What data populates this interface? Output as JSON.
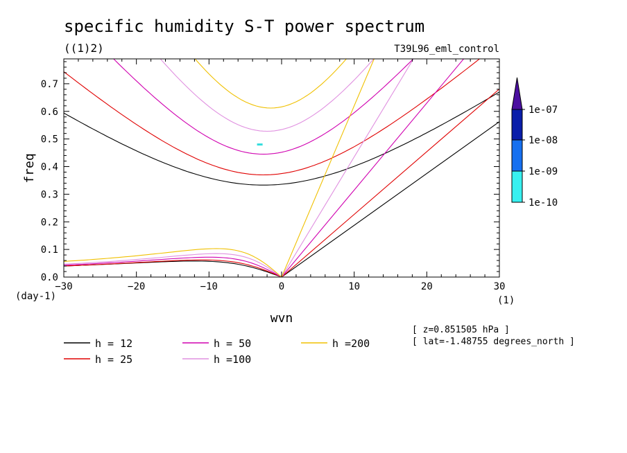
{
  "chart_data": {
    "type": "line",
    "title": "specific humidity S-T power spectrum",
    "subtitle": "((1)2)",
    "experiment": "T39L96_eml_control",
    "xlabel": "wvn",
    "ylabel": "freq",
    "x_unit": "(1)",
    "y_unit": "(day-1)",
    "xlim": [
      -30,
      30
    ],
    "ylim": [
      0,
      0.79
    ],
    "x_ticks": [
      "-30",
      "-20",
      "-10",
      "0",
      "10",
      "20",
      "30"
    ],
    "y_ticks": [
      "0.0",
      "0.1",
      "0.2",
      "0.3",
      "0.4",
      "0.5",
      "0.6",
      "0.7"
    ],
    "info_lines": [
      "[ z=0.851505 hPa ]",
      "[ lat=-1.48755 degrees_north ]"
    ],
    "legend_placement": "bottom",
    "series": [
      {
        "name": "h = 12",
        "color": "#000000",
        "label": "h = 12"
      },
      {
        "name": "h = 25",
        "color": "#e00000",
        "label": "h = 25"
      },
      {
        "name": "h = 50",
        "color": "#d000b0",
        "label": "h = 50"
      },
      {
        "name": "h =100",
        "color": "#e090e0",
        "label": "h =100"
      },
      {
        "name": "h =200",
        "color": "#f0c000",
        "label": "h =200"
      }
    ],
    "dispersion_params": [
      {
        "series": "h = 12",
        "kelvin_slope": 0.01875,
        "ig_min": 0.333,
        "ig_curv": 0.00032,
        "ig_k0": -2.5,
        "rossby_max": 0.058,
        "rossby_k": 12
      },
      {
        "series": "h = 25",
        "kelvin_slope": 0.0227,
        "ig_min": 0.37,
        "ig_curv": 0.00055,
        "ig_k0": -2.5,
        "rossby_max": 0.062,
        "rossby_k": 11
      },
      {
        "series": "h = 50",
        "kelvin_slope": 0.0315,
        "ig_min": 0.445,
        "ig_curv": 0.001,
        "ig_k0": -2.5,
        "rossby_max": 0.072,
        "rossby_k": 10
      },
      {
        "series": "h =100",
        "kelvin_slope": 0.0435,
        "ig_min": 0.528,
        "ig_curv": 0.0016,
        "ig_k0": -2,
        "rossby_max": 0.085,
        "rossby_k": 9
      },
      {
        "series": "h =200",
        "kelvin_slope": 0.062,
        "ig_min": 0.612,
        "ig_curv": 0.0023,
        "ig_k0": -1.5,
        "rossby_max": 0.103,
        "rossby_k": 9
      }
    ],
    "shaded_points": [
      {
        "x": -3,
        "y": 0.48,
        "color": "#33dddd"
      }
    ],
    "colorbar": {
      "labels": [
        "1e-07",
        "1e-08",
        "1e-09",
        "1e-10"
      ],
      "colors": [
        "#4b0fa0",
        "#0a1eaa",
        "#1670f0",
        "#38f0f0"
      ]
    }
  }
}
